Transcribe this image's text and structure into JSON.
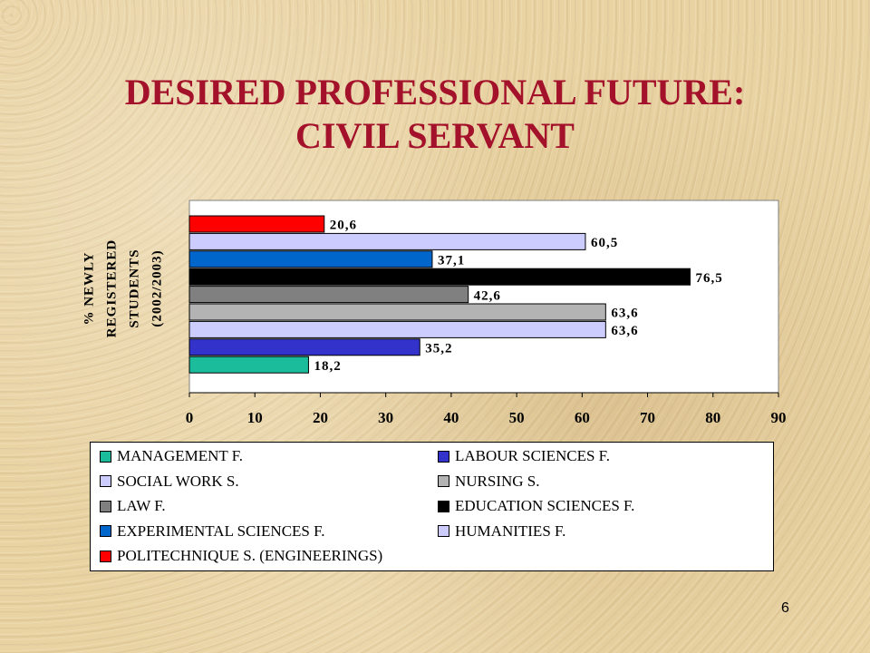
{
  "slide": {
    "title_line1": "DESIRED PROFESSIONAL FUTURE:",
    "title_line2": "CIVIL SERVANT",
    "page_number": "6"
  },
  "chart_data": {
    "type": "bar",
    "orientation": "horizontal",
    "ylabel_lines": [
      "% NEWLY",
      "REGISTERED",
      "STUDENTS",
      "(2002/2003)"
    ],
    "xlim": [
      0,
      90
    ],
    "xticks": [
      0,
      10,
      20,
      30,
      40,
      50,
      60,
      70,
      80,
      90
    ],
    "grid": false,
    "legend_position": "bottom",
    "series": [
      {
        "name": "POLITECHNIQUE S. (ENGINEERINGS)",
        "value": 20.6,
        "label": "20,6",
        "color": "#ff0000"
      },
      {
        "name": "HUMANITIES F.",
        "value": 60.5,
        "label": "60,5",
        "color": "#ccccff"
      },
      {
        "name": "EXPERIMENTAL SCIENCES F.",
        "value": 37.1,
        "label": "37,1",
        "color": "#0066cc"
      },
      {
        "name": "EDUCATION SCIENCES F.",
        "value": 76.5,
        "label": "76,5",
        "color": "#000000"
      },
      {
        "name": "LAW F.",
        "value": 42.6,
        "label": "42,6",
        "color": "#808080"
      },
      {
        "name": "NURSING S.",
        "value": 63.6,
        "label": "63,6",
        "color": "#b3b3b3"
      },
      {
        "name": "SOCIAL WORK S.",
        "value": 63.6,
        "label": "63,6",
        "color": "#ccccff"
      },
      {
        "name": "LABOUR SCIENCES F.",
        "value": 35.2,
        "label": "35,2",
        "color": "#3333cc"
      },
      {
        "name": "MANAGEMENT F.",
        "value": 18.2,
        "label": "18,2",
        "color": "#1abc9c"
      }
    ],
    "legend": [
      {
        "label": "MANAGEMENT F.",
        "color": "#1abc9c"
      },
      {
        "label": "LABOUR SCIENCES F.",
        "color": "#3333cc"
      },
      {
        "label": "SOCIAL WORK S.",
        "color": "#ccccff"
      },
      {
        "label": "NURSING S.",
        "color": "#b3b3b3"
      },
      {
        "label": "LAW F.",
        "color": "#808080"
      },
      {
        "label": "EDUCATION SCIENCES F.",
        "color": "#000000"
      },
      {
        "label": "EXPERIMENTAL SCIENCES F.",
        "color": "#0066cc"
      },
      {
        "label": "HUMANITIES F.",
        "color": "#ccccff"
      },
      {
        "label": "POLITECHNIQUE S. (ENGINEERINGS)",
        "color": "#ff0000"
      }
    ]
  }
}
